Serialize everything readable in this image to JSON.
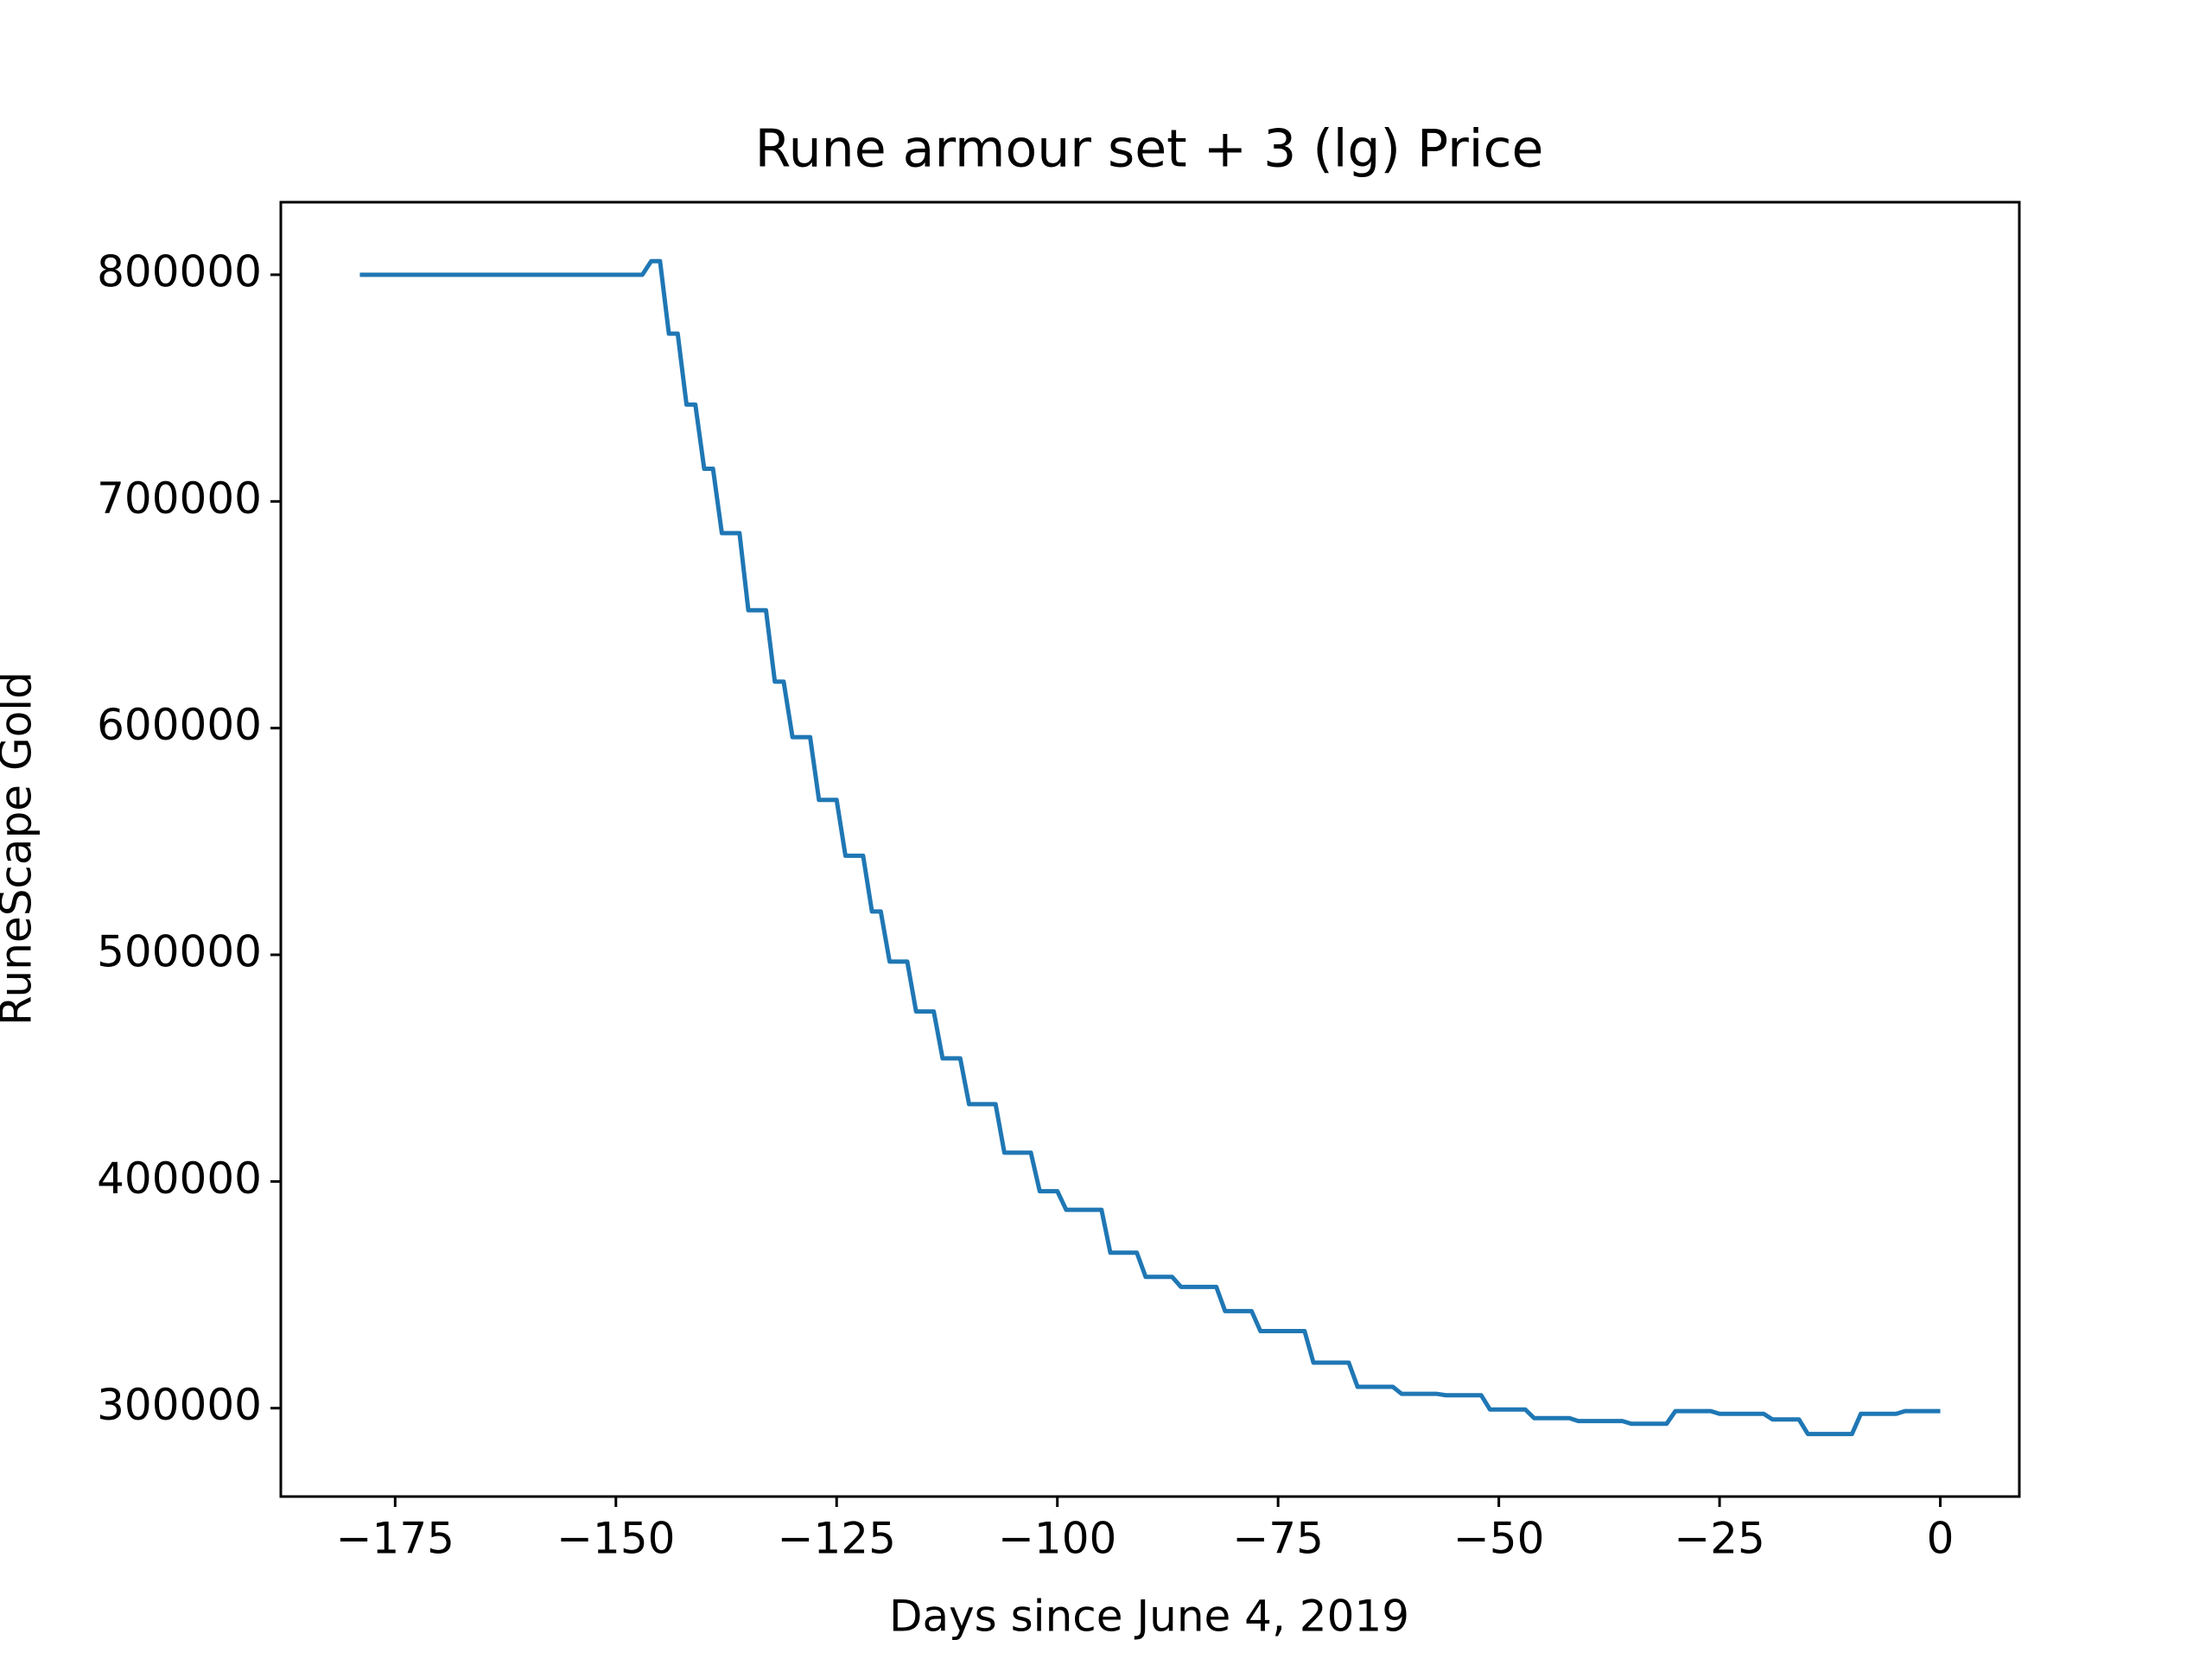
{
  "chart_data": {
    "type": "line",
    "title": "Rune armour set + 3 (lg) Price",
    "x_label": "Days since June 4, 2019",
    "y_label": "RuneScape Gold",
    "x": [
      -179,
      -178,
      -177,
      -176,
      -175,
      -174,
      -173,
      -172,
      -171,
      -170,
      -169,
      -168,
      -167,
      -166,
      -165,
      -164,
      -163,
      -162,
      -161,
      -160,
      -159,
      -158,
      -157,
      -156,
      -155,
      -154,
      -153,
      -152,
      -151,
      -150,
      -149,
      -148,
      -147,
      -146,
      -145,
      -144,
      -143,
      -142,
      -141,
      -140,
      -139,
      -138,
      -137,
      -136,
      -135,
      -134,
      -133,
      -132,
      -131,
      -130,
      -129,
      -128,
      -127,
      -126,
      -125,
      -124,
      -123,
      -122,
      -121,
      -120,
      -119,
      -118,
      -117,
      -116,
      -115,
      -114,
      -113,
      -112,
      -111,
      -110,
      -109,
      -108,
      -107,
      -106,
      -105,
      -104,
      -103,
      -102,
      -101,
      -100,
      -99,
      -98,
      -97,
      -96,
      -95,
      -94,
      -93,
      -92,
      -91,
      -90,
      -89,
      -88,
      -87,
      -86,
      -85,
      -84,
      -83,
      -82,
      -81,
      -80,
      -79,
      -78,
      -77,
      -76,
      -75,
      -74,
      -73,
      -72,
      -71,
      -70,
      -69,
      -68,
      -67,
      -66,
      -65,
      -64,
      -63,
      -62,
      -61,
      -60,
      -59,
      -58,
      -57,
      -56,
      -55,
      -54,
      -53,
      -52,
      -51,
      -50,
      -49,
      -48,
      -47,
      -46,
      -45,
      -44,
      -43,
      -42,
      -41,
      -40,
      -39,
      -38,
      -37,
      -36,
      -35,
      -34,
      -33,
      -32,
      -31,
      -30,
      -29,
      -28,
      -27,
      -26,
      -25,
      -24,
      -23,
      -22,
      -21,
      -20,
      -19,
      -18,
      -17,
      -16,
      -15,
      -14,
      -13,
      -12,
      -11,
      -10,
      -9,
      -8,
      -7,
      -6,
      -5,
      -4,
      -3,
      -2,
      -1,
      0
    ],
    "series": [
      {
        "color": "#1f77b4",
        "values": [
          800000,
          800000,
          800000,
          800000,
          800000,
          800000,
          800000,
          800000,
          800000,
          800000,
          800000,
          800000,
          800000,
          800000,
          800000,
          800000,
          800000,
          800000,
          800000,
          800000,
          800000,
          800000,
          800000,
          800000,
          800000,
          800000,
          800000,
          800000,
          800000,
          800000,
          800000,
          800000,
          800000,
          806000,
          806000,
          774000,
          774000,
          742700,
          742700,
          714400,
          714400,
          686000,
          686000,
          686000,
          652000,
          652000,
          652000,
          620500,
          620500,
          596000,
          596000,
          596000,
          568300,
          568300,
          568300,
          543700,
          543700,
          543700,
          519100,
          519100,
          497000,
          497000,
          497000,
          475000,
          475000,
          475000,
          454300,
          454300,
          454300,
          434100,
          434100,
          434100,
          434100,
          412700,
          412700,
          412700,
          412700,
          395700,
          395700,
          395700,
          387500,
          387500,
          387500,
          387500,
          387500,
          368600,
          368600,
          368600,
          368600,
          357900,
          357900,
          357900,
          357900,
          353500,
          353500,
          353500,
          353500,
          353500,
          342800,
          342800,
          342800,
          342800,
          334000,
          334000,
          334000,
          334000,
          334000,
          334000,
          320100,
          320100,
          320100,
          320100,
          320100,
          309400,
          309400,
          309400,
          309400,
          309400,
          306300,
          306300,
          306300,
          306300,
          306300,
          305700,
          305700,
          305700,
          305700,
          305700,
          299400,
          299400,
          299400,
          299400,
          299400,
          295600,
          295600,
          295600,
          295600,
          295600,
          294300,
          294300,
          294300,
          294300,
          294300,
          294300,
          293100,
          293100,
          293100,
          293100,
          293100,
          298700,
          298700,
          298700,
          298700,
          298700,
          297500,
          297500,
          297500,
          297500,
          297500,
          297500,
          295000,
          295000,
          295000,
          295000,
          288600,
          288600,
          288600,
          288600,
          288600,
          288600,
          297500,
          297500,
          297500,
          297500,
          297500,
          298700,
          298700,
          298700,
          298700,
          298700
        ]
      }
    ],
    "xlim": [
      -187.95,
      8.95
    ],
    "xticks": [
      {
        "value": -175,
        "label": "−175"
      },
      {
        "value": -150,
        "label": "−150"
      },
      {
        "value": -125,
        "label": "−125"
      },
      {
        "value": -100,
        "label": "−100"
      },
      {
        "value": -75,
        "label": "−75"
      },
      {
        "value": -50,
        "label": "−50"
      },
      {
        "value": -25,
        "label": "−25"
      },
      0
    ],
    "ylim": [
      261000,
      832000
    ],
    "yticks": [
      300000,
      400000,
      500000,
      600000,
      700000,
      800000
    ],
    "grid": false
  }
}
